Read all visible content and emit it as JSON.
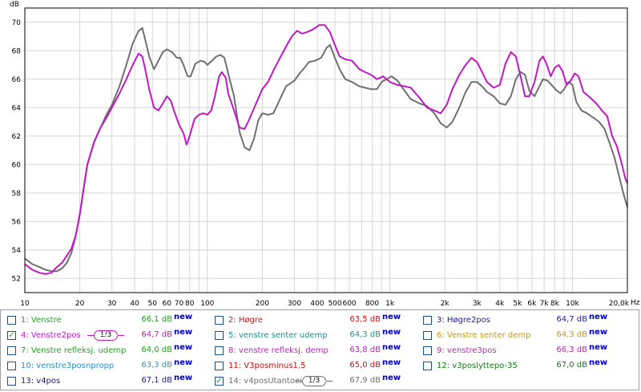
{
  "chart_data": {
    "type": "line",
    "x_scale": "log",
    "xlim": [
      10,
      20000
    ],
    "ylim": [
      51,
      71
    ],
    "yunit": "dB",
    "xunit": "Hz",
    "grid": true,
    "x_ticks": [
      {
        "value": 10,
        "label": "10"
      },
      {
        "value": 20,
        "label": "20"
      },
      {
        "value": 30,
        "label": "30"
      },
      {
        "value": 40,
        "label": "40"
      },
      {
        "value": 50,
        "label": "50"
      },
      {
        "value": 60,
        "label": "60"
      },
      {
        "value": 70,
        "label": "70"
      },
      {
        "value": 80,
        "label": "80"
      },
      {
        "value": 100,
        "label": "100"
      },
      {
        "value": 200,
        "label": "200"
      },
      {
        "value": 300,
        "label": "300"
      },
      {
        "value": 400,
        "label": "400"
      },
      {
        "value": 500,
        "label": "500"
      },
      {
        "value": 600,
        "label": "600"
      },
      {
        "value": 800,
        "label": "800"
      },
      {
        "value": 1000,
        "label": "1k"
      },
      {
        "value": 2000,
        "label": "2k"
      },
      {
        "value": 3000,
        "label": "3k"
      },
      {
        "value": 4000,
        "label": "4k"
      },
      {
        "value": 5000,
        "label": "5k"
      },
      {
        "value": 6000,
        "label": "6k"
      },
      {
        "value": 7000,
        "label": "7k"
      },
      {
        "value": 8000,
        "label": "8k"
      },
      {
        "value": 10000,
        "label": "10k"
      },
      {
        "value": 20000,
        "label": "20,0k"
      }
    ],
    "y_ticks": [
      {
        "value": 52,
        "label": "52"
      },
      {
        "value": 54,
        "label": "54"
      },
      {
        "value": 56,
        "label": "56"
      },
      {
        "value": 58,
        "label": "58"
      },
      {
        "value": 60,
        "label": "60"
      },
      {
        "value": 62,
        "label": "62"
      },
      {
        "value": 64,
        "label": "64"
      },
      {
        "value": 66,
        "label": "66"
      },
      {
        "value": 68,
        "label": "68"
      },
      {
        "value": 70,
        "label": "70"
      }
    ],
    "series": [
      {
        "name": "4: Venstre2pos",
        "color": "#bf19c4",
        "points": [
          [
            10,
            53.0
          ],
          [
            11,
            52.6
          ],
          [
            12,
            52.4
          ],
          [
            13,
            52.3
          ],
          [
            14,
            52.4
          ],
          [
            15,
            52.8
          ],
          [
            16,
            53.1
          ],
          [
            17,
            53.6
          ],
          [
            18,
            54.1
          ],
          [
            19,
            55.0
          ],
          [
            20,
            56.5
          ],
          [
            21,
            58.3
          ],
          [
            22,
            60.0
          ],
          [
            24,
            61.6
          ],
          [
            26,
            62.6
          ],
          [
            28,
            63.3
          ],
          [
            30,
            64.0
          ],
          [
            33,
            65.0
          ],
          [
            36,
            66.0
          ],
          [
            39,
            67.0
          ],
          [
            42,
            67.8
          ],
          [
            44,
            67.6
          ],
          [
            46,
            66.5
          ],
          [
            48,
            65.3
          ],
          [
            51,
            64.0
          ],
          [
            54,
            63.8
          ],
          [
            57,
            64.3
          ],
          [
            60,
            64.8
          ],
          [
            63,
            64.5
          ],
          [
            66,
            63.7
          ],
          [
            70,
            62.8
          ],
          [
            74,
            62.2
          ],
          [
            77,
            61.4
          ],
          [
            80,
            62.0
          ],
          [
            85,
            63.2
          ],
          [
            90,
            63.5
          ],
          [
            95,
            63.6
          ],
          [
            100,
            63.5
          ],
          [
            105,
            63.8
          ],
          [
            110,
            64.8
          ],
          [
            116,
            66.2
          ],
          [
            120,
            66.5
          ],
          [
            126,
            66.1
          ],
          [
            130,
            65.0
          ],
          [
            140,
            63.8
          ],
          [
            150,
            62.6
          ],
          [
            160,
            62.5
          ],
          [
            170,
            63.2
          ],
          [
            185,
            64.3
          ],
          [
            200,
            65.3
          ],
          [
            215,
            65.8
          ],
          [
            230,
            66.6
          ],
          [
            250,
            67.5
          ],
          [
            270,
            68.3
          ],
          [
            290,
            69.0
          ],
          [
            310,
            69.4
          ],
          [
            330,
            69.2
          ],
          [
            350,
            69.3
          ],
          [
            380,
            69.5
          ],
          [
            410,
            69.8
          ],
          [
            440,
            69.8
          ],
          [
            470,
            69.3
          ],
          [
            500,
            68.4
          ],
          [
            530,
            67.6
          ],
          [
            570,
            67.4
          ],
          [
            620,
            67.3
          ],
          [
            680,
            66.7
          ],
          [
            730,
            66.5
          ],
          [
            790,
            66.3
          ],
          [
            850,
            66.0
          ],
          [
            920,
            66.2
          ],
          [
            1000,
            65.8
          ],
          [
            1100,
            65.6
          ],
          [
            1200,
            65.5
          ],
          [
            1300,
            65.4
          ],
          [
            1450,
            64.7
          ],
          [
            1600,
            64.0
          ],
          [
            1750,
            63.8
          ],
          [
            1900,
            63.6
          ],
          [
            2050,
            64.2
          ],
          [
            2200,
            65.3
          ],
          [
            2400,
            66.3
          ],
          [
            2600,
            67.0
          ],
          [
            2800,
            67.5
          ],
          [
            3000,
            67.2
          ],
          [
            3200,
            66.5
          ],
          [
            3400,
            65.8
          ],
          [
            3700,
            65.4
          ],
          [
            4000,
            65.6
          ],
          [
            4300,
            67.1
          ],
          [
            4600,
            67.9
          ],
          [
            4900,
            67.6
          ],
          [
            5200,
            66.2
          ],
          [
            5500,
            64.8
          ],
          [
            5800,
            64.8
          ],
          [
            6200,
            65.8
          ],
          [
            6600,
            67.3
          ],
          [
            6900,
            67.6
          ],
          [
            7200,
            67.1
          ],
          [
            7600,
            66.2
          ],
          [
            8000,
            66.8
          ],
          [
            8400,
            67.0
          ],
          [
            8800,
            66.6
          ],
          [
            9300,
            65.6
          ],
          [
            9800,
            65.9
          ],
          [
            10300,
            66.4
          ],
          [
            10800,
            66.2
          ],
          [
            11500,
            65.1
          ],
          [
            12500,
            64.7
          ],
          [
            13500,
            64.3
          ],
          [
            14500,
            63.8
          ],
          [
            15500,
            63.4
          ],
          [
            16500,
            62.0
          ],
          [
            17500,
            61.3
          ],
          [
            18500,
            60.2
          ],
          [
            19500,
            59.0
          ],
          [
            20000,
            58.7
          ]
        ]
      },
      {
        "name": "14: v4posUtantoein",
        "color": "#707070",
        "points": [
          [
            10,
            53.4
          ],
          [
            11,
            53.0
          ],
          [
            12,
            52.8
          ],
          [
            13,
            52.6
          ],
          [
            14,
            52.5
          ],
          [
            15,
            52.5
          ],
          [
            16,
            52.7
          ],
          [
            17,
            53.1
          ],
          [
            18,
            53.8
          ],
          [
            19,
            55.0
          ],
          [
            20,
            56.5
          ],
          [
            21,
            58.3
          ],
          [
            22,
            60.0
          ],
          [
            24,
            61.6
          ],
          [
            26,
            62.6
          ],
          [
            28,
            63.5
          ],
          [
            30,
            64.2
          ],
          [
            33,
            65.5
          ],
          [
            36,
            67.0
          ],
          [
            39,
            68.5
          ],
          [
            42,
            69.4
          ],
          [
            44,
            69.6
          ],
          [
            46,
            68.6
          ],
          [
            48,
            67.6
          ],
          [
            51,
            66.7
          ],
          [
            54,
            67.3
          ],
          [
            57,
            67.9
          ],
          [
            60,
            68.1
          ],
          [
            64,
            67.9
          ],
          [
            68,
            67.5
          ],
          [
            71,
            67.5
          ],
          [
            74,
            67.0
          ],
          [
            78,
            66.2
          ],
          [
            81,
            66.2
          ],
          [
            86,
            67.1
          ],
          [
            92,
            67.3
          ],
          [
            97,
            67.2
          ],
          [
            100,
            67.0
          ],
          [
            106,
            67.3
          ],
          [
            112,
            67.6
          ],
          [
            118,
            67.7
          ],
          [
            124,
            67.5
          ],
          [
            130,
            66.4
          ],
          [
            140,
            64.8
          ],
          [
            150,
            62.3
          ],
          [
            160,
            61.2
          ],
          [
            170,
            61.0
          ],
          [
            180,
            61.8
          ],
          [
            190,
            63.1
          ],
          [
            200,
            63.6
          ],
          [
            215,
            63.5
          ],
          [
            230,
            63.6
          ],
          [
            250,
            64.6
          ],
          [
            270,
            65.5
          ],
          [
            300,
            65.9
          ],
          [
            320,
            66.4
          ],
          [
            340,
            66.8
          ],
          [
            360,
            67.2
          ],
          [
            390,
            67.3
          ],
          [
            420,
            67.5
          ],
          [
            450,
            68.2
          ],
          [
            470,
            68.4
          ],
          [
            500,
            67.5
          ],
          [
            530,
            66.7
          ],
          [
            570,
            66.0
          ],
          [
            620,
            65.8
          ],
          [
            680,
            65.5
          ],
          [
            730,
            65.4
          ],
          [
            790,
            65.3
          ],
          [
            850,
            65.3
          ],
          [
            900,
            65.8
          ],
          [
            960,
            66.0
          ],
          [
            1020,
            66.2
          ],
          [
            1100,
            65.9
          ],
          [
            1200,
            65.2
          ],
          [
            1300,
            64.6
          ],
          [
            1450,
            64.3
          ],
          [
            1600,
            64.1
          ],
          [
            1750,
            63.6
          ],
          [
            1900,
            62.9
          ],
          [
            2050,
            62.6
          ],
          [
            2200,
            63.0
          ],
          [
            2400,
            64.0
          ],
          [
            2600,
            65.1
          ],
          [
            2800,
            65.8
          ],
          [
            3000,
            65.8
          ],
          [
            3200,
            65.5
          ],
          [
            3400,
            65.1
          ],
          [
            3700,
            64.8
          ],
          [
            4000,
            64.3
          ],
          [
            4300,
            64.2
          ],
          [
            4600,
            64.8
          ],
          [
            4900,
            66.0
          ],
          [
            5200,
            66.5
          ],
          [
            5500,
            66.3
          ],
          [
            5800,
            65.2
          ],
          [
            6200,
            64.8
          ],
          [
            6600,
            65.5
          ],
          [
            6900,
            66.0
          ],
          [
            7300,
            65.9
          ],
          [
            7800,
            65.5
          ],
          [
            8200,
            65.2
          ],
          [
            8600,
            65.0
          ],
          [
            9000,
            65.3
          ],
          [
            9500,
            65.8
          ],
          [
            10000,
            65.6
          ],
          [
            10500,
            64.4
          ],
          [
            11200,
            63.8
          ],
          [
            12000,
            63.6
          ],
          [
            13000,
            63.3
          ],
          [
            14000,
            63.0
          ],
          [
            15000,
            62.5
          ],
          [
            16000,
            61.5
          ],
          [
            17000,
            60.5
          ],
          [
            18000,
            59.2
          ],
          [
            19000,
            58.0
          ],
          [
            20000,
            57.0
          ]
        ]
      }
    ]
  },
  "legend": {
    "items": [
      {
        "label": "1: Venstre",
        "label_color": "#21a121",
        "value": "66,1 dB",
        "value_color": "#21a121",
        "new": "new",
        "checked": false,
        "smoothing": ""
      },
      {
        "label": "2: Høgre",
        "label_color": "#d41212",
        "value": "63,5 dB",
        "value_color": "#d41212",
        "new": "new",
        "checked": false,
        "smoothing": ""
      },
      {
        "label": "3: Høgre2pos",
        "label_color": "#2020a8",
        "value": "64,7 dB",
        "value_color": "#2020a8",
        "new": "new",
        "checked": false,
        "smoothing": ""
      },
      {
        "label": "4: Venstre2pos",
        "label_color": "#bf19c4",
        "value": "64,7 dB",
        "value_color": "#bf19c4",
        "new": "new",
        "checked": true,
        "smoothing": "1/3"
      },
      {
        "label": "5: venstre senter udemp",
        "label_color": "#1a8f8f",
        "value": "64,3 dB",
        "value_color": "#1a8f8f",
        "new": "new",
        "checked": false,
        "smoothing": ""
      },
      {
        "label": "6: Venstre senter demp",
        "label_color": "#c49a12",
        "value": "64,3 dB",
        "value_color": "#c49a12",
        "new": "new",
        "checked": false,
        "smoothing": ""
      },
      {
        "label": "7: Venstre refleksj. udemp",
        "label_color": "#21a121",
        "value": "64,0 dB",
        "value_color": "#21a121",
        "new": "new",
        "checked": false,
        "smoothing": ""
      },
      {
        "label": "8: venstre refleksj. demp",
        "label_color": "#b02cb0",
        "value": "63,8 dB",
        "value_color": "#b02cb0",
        "new": "new",
        "checked": false,
        "smoothing": ""
      },
      {
        "label": "9: venstre3pos",
        "label_color": "#b02cb0",
        "value": "66,3 dB",
        "value_color": "#b02cb0",
        "new": "new",
        "checked": false,
        "smoothing": ""
      },
      {
        "label": "10: venstre3posnpropp",
        "label_color": "#2d8fc4",
        "value": "63,3 dB",
        "value_color": "#2d8fc4",
        "new": "new",
        "checked": false,
        "smoothing": ""
      },
      {
        "label": "11: V3posminus1,5",
        "label_color": "#c41212",
        "value": "65,0 dB",
        "value_color": "#c41212",
        "new": "new",
        "checked": false,
        "smoothing": ""
      },
      {
        "label": "12: v3poslyttepo-35",
        "label_color": "#137a13",
        "value": "67,0 dB",
        "value_color": "#137a13",
        "new": "new",
        "checked": false,
        "smoothing": ""
      },
      {
        "label": "13: v4pos",
        "label_color": "#1a1a8a",
        "value": "67,1 dB",
        "value_color": "#1a1a8a",
        "new": "new",
        "checked": false,
        "smoothing": ""
      },
      {
        "label": "14: v4posUtantoein",
        "label_color": "#707070",
        "value": "67,9 dB",
        "value_color": "#707070",
        "new": "new",
        "checked": true,
        "smoothing": "1/3"
      }
    ]
  },
  "icons": {
    "checked": "check-mark-icon",
    "smoothing": "smoothing-badge-icon"
  },
  "colors": {
    "grid": "#d6d6d6",
    "axes": "#000000",
    "legend_border": "#9aa0a8"
  }
}
